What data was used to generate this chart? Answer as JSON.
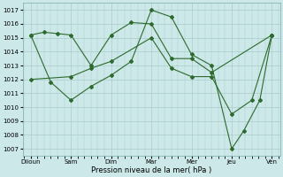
{
  "xlabel": "Pression niveau de la mer( hPa )",
  "xlabels": [
    "Diioun",
    "Sam",
    "Dim",
    "Mar",
    "Mer",
    "Jeu",
    "Ven"
  ],
  "ylim": [
    1006.5,
    1017.5
  ],
  "yticks": [
    1007,
    1008,
    1009,
    1010,
    1011,
    1012,
    1013,
    1014,
    1015,
    1016,
    1017
  ],
  "background_color": "#cce8e8",
  "grid_color": "#aacccc",
  "line_color": "#2d6a2d",
  "line1_x": [
    0,
    0.33,
    0.67,
    1.0,
    1.5,
    2.0,
    2.5,
    3.0,
    3.5,
    4.0,
    4.5,
    6.0
  ],
  "line1_y": [
    1015.2,
    1015.4,
    1015.3,
    1015.2,
    1013.0,
    1015.2,
    1016.1,
    1016.0,
    1013.5,
    1013.5,
    1012.5,
    1015.2
  ],
  "line2_x": [
    0,
    0.5,
    1.0,
    1.5,
    2.0,
    2.5,
    3.0,
    3.5,
    4.0,
    4.5,
    5.0,
    5.3,
    5.7,
    6.0
  ],
  "line2_y": [
    1015.2,
    1011.8,
    1010.5,
    1011.5,
    1012.3,
    1013.3,
    1017.0,
    1016.5,
    1013.8,
    1013.0,
    1007.0,
    1008.3,
    1010.5,
    1015.2
  ],
  "line3_x": [
    0,
    1.0,
    1.5,
    2.0,
    3.0,
    3.5,
    4.0,
    4.5,
    5.0,
    5.5,
    6.0
  ],
  "line3_y": [
    1012.0,
    1012.2,
    1012.8,
    1013.3,
    1015.0,
    1012.8,
    1012.2,
    1012.2,
    1009.5,
    1010.5,
    1015.2
  ]
}
